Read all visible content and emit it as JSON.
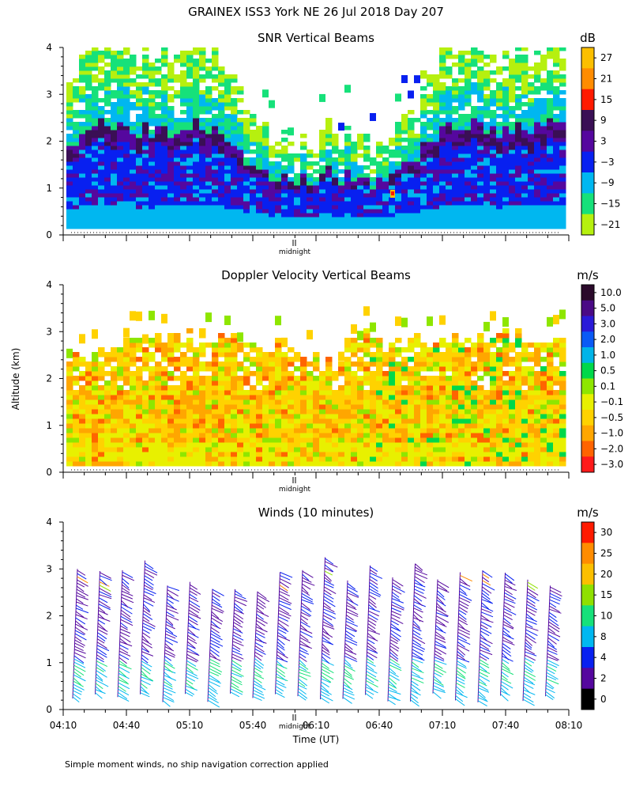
{
  "title": "GRAINEX ISS3 York NE  26 Jul 2018 Day 207",
  "ylabel": "Altitude (km)",
  "footnote": "Simple moment winds, no ship navigation correction applied",
  "midnight_label": "midnight",
  "chart_data": [
    {
      "type": "heatmap",
      "title": "SNR Vertical Beams",
      "unit": "dB",
      "ylim": [
        0,
        4
      ],
      "yticks": [
        "0",
        "1",
        "2",
        "3",
        "4"
      ],
      "colorbar_labels": [
        "27",
        "21",
        "15",
        "9",
        "3",
        "−3",
        "−9",
        "−15",
        "−21"
      ],
      "colorbar_colors": [
        "#fbbf00",
        "#ff8c00",
        "#ff1a00",
        "#3a0f55",
        "#55079e",
        "#0820f0",
        "#00b7f0",
        "#16e17a",
        "#b6f00f"
      ]
    },
    {
      "type": "heatmap",
      "title": "Doppler Velocity Vertical Beams",
      "unit": "m/s",
      "ylim": [
        0,
        4
      ],
      "yticks": [
        "0",
        "1",
        "2",
        "3",
        "4"
      ],
      "colorbar_labels": [
        "10.0",
        "5.0",
        "3.0",
        "2.0",
        "1.0",
        "0.5",
        "0.1",
        "−0.1",
        "−0.5",
        "−1.0",
        "−2.0",
        "−3.0"
      ],
      "colorbar_colors": [
        "#2b0a2b",
        "#4a0a85",
        "#2a1ad8",
        "#0a5af5",
        "#00b4e8",
        "#00d84a",
        "#8ee600",
        "#e8f000",
        "#ffd200",
        "#ffa600",
        "#ff6400",
        "#ff1a1a"
      ]
    },
    {
      "type": "wind_barbs",
      "title": "Winds (10 minutes)",
      "unit": "m/s",
      "ylim": [
        0,
        4
      ],
      "yticks": [
        "0",
        "1",
        "2",
        "3",
        "4"
      ],
      "xlabel": "Time (UT)",
      "xticks": [
        "04:10",
        "04:40",
        "05:10",
        "05:40",
        "06:10",
        "06:40",
        "07:10",
        "07:40",
        "08:10"
      ],
      "colorbar_labels": [
        "30",
        "25",
        "20",
        "15",
        "10",
        "8",
        "4",
        "2",
        "0"
      ],
      "colorbar_colors": [
        "#ff1a00",
        "#ff8c00",
        "#fbbf00",
        "#8fe000",
        "#16e17a",
        "#00b7f0",
        "#0820f0",
        "#55079e",
        "#000000"
      ]
    }
  ]
}
